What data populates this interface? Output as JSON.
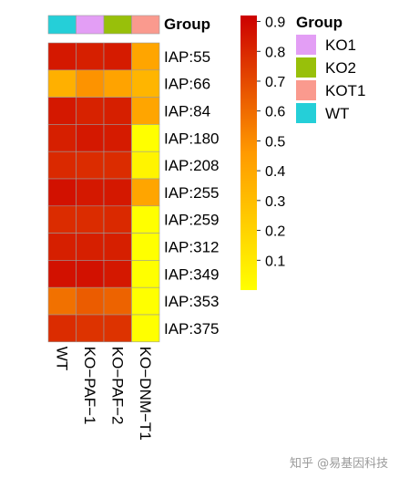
{
  "chart_data": {
    "type": "heatmap",
    "rows": [
      "IAP:55",
      "IAP:66",
      "IAP:84",
      "IAP:180",
      "IAP:208",
      "IAP:255",
      "IAP:259",
      "IAP:312",
      "IAP:349",
      "IAP:353",
      "IAP:375"
    ],
    "columns": [
      "WT",
      "KO−PAF−1",
      "KO−PAF−2",
      "KO−DNM−T1"
    ],
    "values": [
      [
        0.88,
        0.86,
        0.87,
        0.45
      ],
      [
        0.4,
        0.52,
        0.46,
        0.38
      ],
      [
        0.88,
        0.85,
        0.86,
        0.45
      ],
      [
        0.86,
        0.88,
        0.87,
        0.05
      ],
      [
        0.83,
        0.82,
        0.82,
        0.1
      ],
      [
        0.9,
        0.88,
        0.88,
        0.45
      ],
      [
        0.82,
        0.82,
        0.83,
        0.05
      ],
      [
        0.86,
        0.86,
        0.86,
        0.05
      ],
      [
        0.9,
        0.9,
        0.88,
        0.05
      ],
      [
        0.62,
        0.68,
        0.66,
        0.05
      ],
      [
        0.82,
        0.8,
        0.8,
        0.05
      ]
    ],
    "color_scale": {
      "domain": [
        0.05,
        0.5,
        0.95
      ],
      "colors": [
        "#ffff00",
        "#ff9a00",
        "#cc0000"
      ],
      "ticks": [
        0.1,
        0.2,
        0.3,
        0.4,
        0.5,
        0.6,
        0.7,
        0.8,
        0.9
      ]
    },
    "group_annotation": {
      "title": "Group",
      "column_groups": [
        "WT",
        "KO1",
        "KO2",
        "KOT1"
      ],
      "legend": [
        {
          "name": "KO1",
          "color": "#e39ef5"
        },
        {
          "name": "KO2",
          "color": "#98c00a"
        },
        {
          "name": "KOT1",
          "color": "#fa9a8e"
        },
        {
          "name": "WT",
          "color": "#25cfd8"
        }
      ]
    }
  },
  "watermark": "知乎 @易基因科技"
}
